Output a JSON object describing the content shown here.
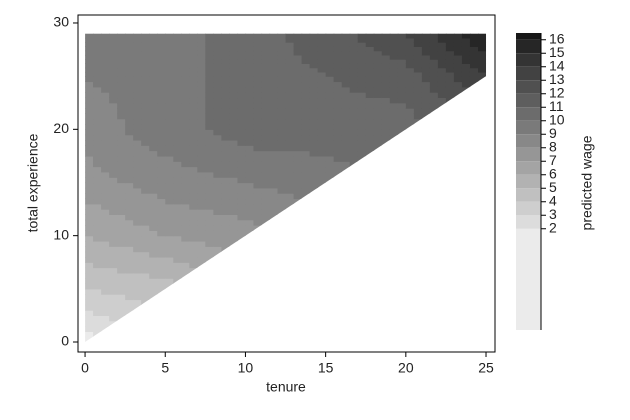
{
  "chart_data": {
    "type": "contour",
    "xlabel": "tenure",
    "ylabel": "total experience",
    "colorbar_label": "predicted wage",
    "x": [
      0,
      5,
      10,
      15,
      20,
      25
    ],
    "y": [
      0,
      5,
      10,
      15,
      20,
      25,
      29
    ],
    "z": [
      [
        1.5,
        null,
        null,
        null,
        null,
        null
      ],
      [
        4,
        4.5,
        null,
        null,
        null,
        null
      ],
      [
        6,
        7,
        7.5,
        null,
        null,
        null
      ],
      [
        7.5,
        8.5,
        9,
        9.5,
        null,
        null
      ],
      [
        8.5,
        9.5,
        10.5,
        10.5,
        10.5,
        null
      ],
      [
        9,
        9.5,
        10.5,
        11,
        11.5,
        14
      ],
      [
        9,
        9.5,
        10.5,
        11.5,
        13,
        16
      ]
    ],
    "xlim": [
      -0.44,
      25.56
    ],
    "ylim": [
      -0.94,
      30.75
    ],
    "xticks": [
      0,
      5,
      10,
      15,
      20,
      25
    ],
    "yticks": [
      0,
      10,
      20,
      30
    ],
    "levels": [
      2,
      3,
      4,
      5,
      6,
      7,
      8,
      9,
      10,
      11,
      12,
      13,
      14,
      15,
      16
    ],
    "clim": [
      -5.5,
      16.5
    ],
    "colors": [
      "#ebebeb",
      "#dcdcdc",
      "#cecece",
      "#c0c0c0",
      "#b2b2b2",
      "#a4a4a4",
      "#969696",
      "#888888",
      "#7a7a7a",
      "#6c6c6c",
      "#5e5e5e",
      "#505050",
      "#424242",
      "#343434",
      "#262626",
      "#181818"
    ]
  }
}
